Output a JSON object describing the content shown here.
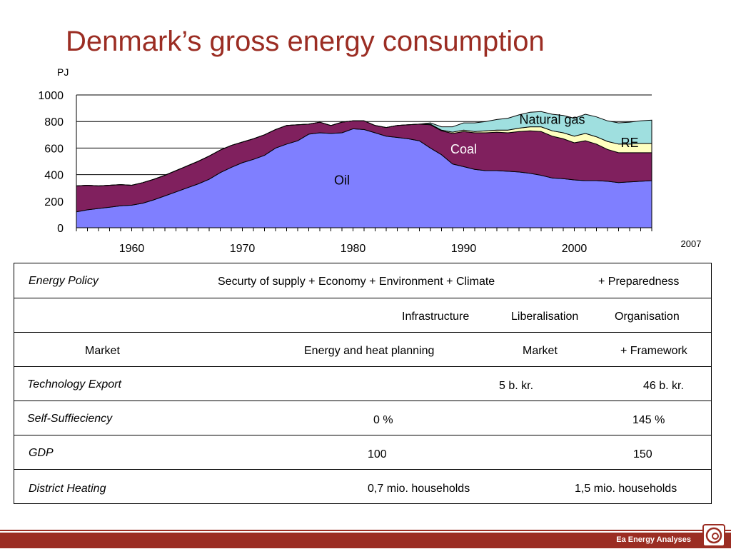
{
  "title": "Denmark’s gross energy consumption",
  "chart_data": {
    "type": "area",
    "stacked": true,
    "ylabel": "PJ",
    "ylim": [
      0,
      1000
    ],
    "yticks": [
      0,
      200,
      400,
      600,
      800,
      1000
    ],
    "xlim": [
      1955,
      2007
    ],
    "xticks": [
      1960,
      1970,
      1980,
      1990,
      2000
    ],
    "x_end_label": "2007",
    "grid": "horizontal",
    "x": [
      1955,
      1956,
      1957,
      1958,
      1959,
      1960,
      1961,
      1962,
      1963,
      1964,
      1965,
      1966,
      1967,
      1968,
      1969,
      1970,
      1971,
      1972,
      1973,
      1974,
      1975,
      1976,
      1977,
      1978,
      1979,
      1980,
      1981,
      1982,
      1983,
      1984,
      1985,
      1986,
      1987,
      1988,
      1989,
      1990,
      1991,
      1992,
      1993,
      1994,
      1995,
      1996,
      1997,
      1998,
      1999,
      2000,
      2001,
      2002,
      2003,
      2004,
      2005,
      2006,
      2007
    ],
    "series": [
      {
        "name": "Oil",
        "color": "#7f7fff",
        "label_color": "#000000",
        "values": [
          120,
          135,
          145,
          155,
          165,
          170,
          185,
          210,
          240,
          270,
          300,
          330,
          365,
          415,
          455,
          490,
          515,
          545,
          600,
          630,
          655,
          705,
          715,
          710,
          715,
          745,
          740,
          715,
          690,
          680,
          670,
          655,
          600,
          550,
          480,
          460,
          440,
          430,
          430,
          425,
          420,
          410,
          395,
          375,
          370,
          360,
          355,
          355,
          350,
          340,
          345,
          350,
          355
        ]
      },
      {
        "name": "Coal",
        "color": "#80205e",
        "label_color": "#ffffff",
        "values": [
          195,
          185,
          170,
          165,
          160,
          150,
          155,
          155,
          155,
          160,
          165,
          170,
          175,
          170,
          165,
          155,
          155,
          155,
          140,
          140,
          120,
          75,
          80,
          60,
          80,
          60,
          65,
          55,
          65,
          90,
          105,
          125,
          175,
          180,
          230,
          265,
          275,
          285,
          290,
          290,
          305,
          320,
          330,
          315,
          300,
          280,
          300,
          275,
          240,
          225,
          220,
          215,
          210
        ]
      },
      {
        "name": "RE",
        "color": "#ffffc0",
        "label_color": "#000000",
        "values": [
          0,
          0,
          0,
          0,
          0,
          0,
          0,
          0,
          0,
          0,
          0,
          0,
          0,
          0,
          0,
          0,
          0,
          0,
          0,
          0,
          0,
          0,
          0,
          0,
          0,
          0,
          0,
          0,
          0,
          0,
          0,
          0,
          5,
          5,
          10,
          10,
          10,
          15,
          15,
          20,
          25,
          30,
          35,
          40,
          45,
          50,
          55,
          55,
          60,
          65,
          65,
          70,
          70
        ]
      },
      {
        "name": "Natural gas",
        "color": "#9fdfdf",
        "label_color": "#000000",
        "values": [
          0,
          0,
          0,
          0,
          0,
          0,
          0,
          0,
          0,
          0,
          0,
          0,
          0,
          0,
          0,
          0,
          0,
          0,
          0,
          0,
          0,
          0,
          0,
          0,
          0,
          0,
          0,
          0,
          0,
          0,
          0,
          0,
          10,
          25,
          40,
          55,
          65,
          70,
          80,
          90,
          100,
          110,
          115,
          125,
          130,
          135,
          145,
          150,
          155,
          160,
          165,
          170,
          175
        ]
      }
    ]
  },
  "table": {
    "rows": [
      {
        "label": "Energy Policy",
        "label_italic": true,
        "cells": [
          "Securty of supply + Economy + Environment + Climate",
          "+ Preparedness"
        ]
      },
      {
        "label": "",
        "label_italic": false,
        "cells": [
          "Infrastructure",
          "Liberalisation",
          "Organisation"
        ]
      },
      {
        "label": "Market",
        "label_italic": false,
        "cells": [
          "Energy and heat planning",
          "Market",
          "+ Framework"
        ]
      },
      {
        "label": "Technology Export",
        "label_italic": true,
        "cells": [
          "5 b. kr.",
          "46 b. kr."
        ]
      },
      {
        "label": "Self-Suffieciency",
        "label_italic": true,
        "cells": [
          "0 %",
          "145 %"
        ]
      },
      {
        "label": "GDP",
        "label_italic": true,
        "cells": [
          "100",
          "150"
        ]
      },
      {
        "label": "District Heating",
        "label_italic": true,
        "cells": [
          "0,7 mio. households",
          "1,5 mio. households"
        ]
      }
    ]
  },
  "footer": {
    "brand": "Ea Energy Analyses"
  }
}
